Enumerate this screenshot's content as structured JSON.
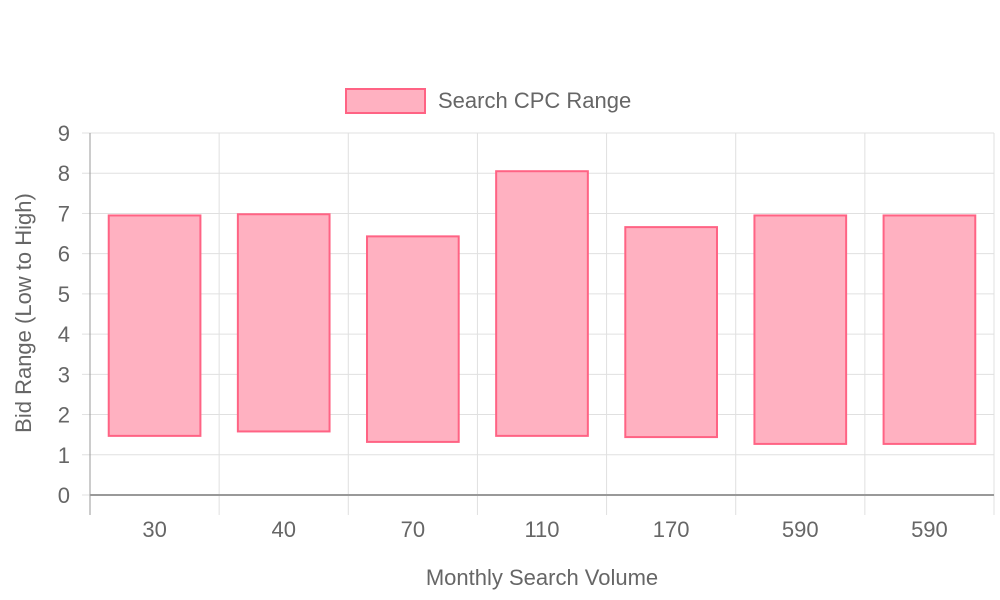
{
  "chart_data": {
    "type": "bar",
    "subtype": "floating-range",
    "categories": [
      "30",
      "40",
      "70",
      "110",
      "170",
      "590",
      "590"
    ],
    "series": [
      {
        "name": "Search CPC Range",
        "ranges": [
          [
            1.47,
            6.95
          ],
          [
            1.58,
            6.98
          ],
          [
            1.32,
            6.43
          ],
          [
            1.47,
            8.05
          ],
          [
            1.44,
            6.66
          ],
          [
            1.27,
            6.95
          ],
          [
            1.27,
            6.95
          ]
        ]
      }
    ],
    "xlabel": "Monthly Search Volume",
    "ylabel": "Bid Range (Low to High)",
    "ylim": [
      0,
      9
    ],
    "yticks": [
      "0",
      "1",
      "2",
      "3",
      "4",
      "5",
      "6",
      "7",
      "8",
      "9"
    ],
    "grid": true,
    "legend_position": "top",
    "colors": {
      "bar_fill": "#ffb1c1",
      "bar_border": "#ff6384",
      "grid": "#e0e0e0",
      "axis": "#999999",
      "text": "#666666"
    }
  }
}
